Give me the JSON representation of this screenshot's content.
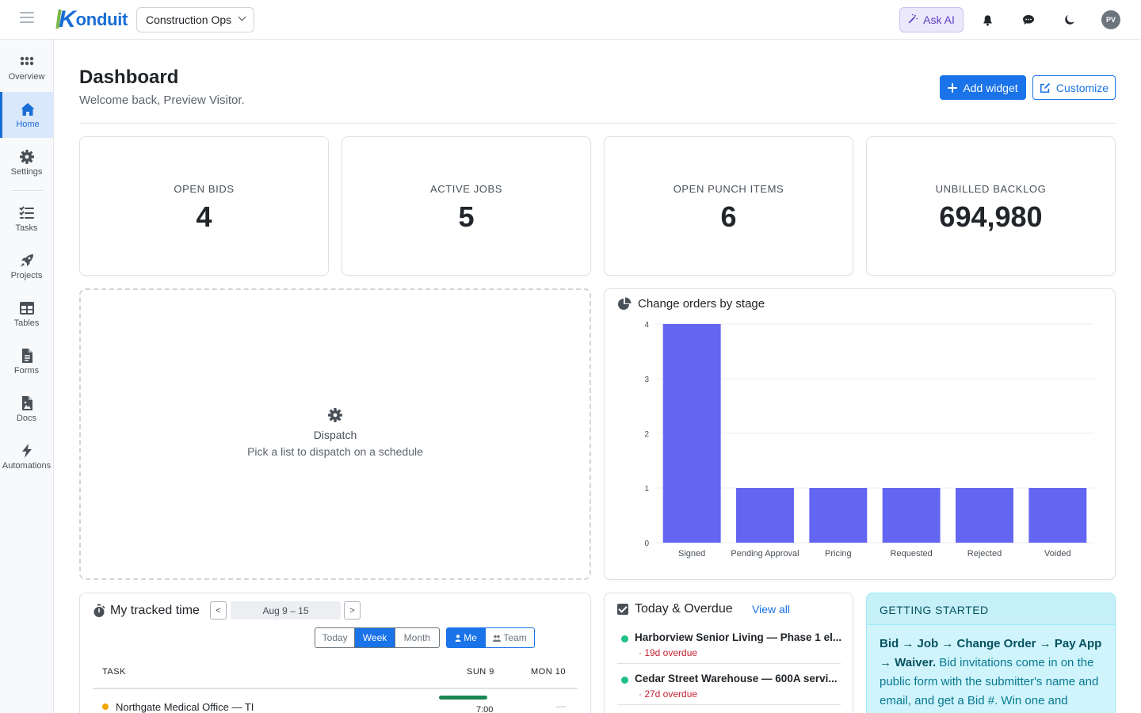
{
  "topbar": {
    "brand": "onduit",
    "brand_initial": "K",
    "workspace": "Construction Ops",
    "ask_ai": "Ask AI",
    "avatar_initials": "PV",
    "icons": [
      "hamburger-icon",
      "bell-icon",
      "chat-icon",
      "moon-icon"
    ]
  },
  "sidebar": {
    "items": [
      {
        "label": "Overview",
        "icon": "grid-icon"
      },
      {
        "label": "Home",
        "icon": "home-icon",
        "active": true
      },
      {
        "label": "Settings",
        "icon": "gear-icon"
      },
      {
        "label": "Tasks",
        "icon": "checklist-icon"
      },
      {
        "label": "Projects",
        "icon": "rocket-icon"
      },
      {
        "label": "Tables",
        "icon": "table-icon"
      },
      {
        "label": "Forms",
        "icon": "form-icon"
      },
      {
        "label": "Docs",
        "icon": "doc-icon"
      },
      {
        "label": "Automations",
        "icon": "bolt-icon"
      }
    ]
  },
  "header": {
    "title": "Dashboard",
    "subtitle": "Welcome back, Preview Visitor.",
    "add_widget": "Add widget",
    "customize": "Customize"
  },
  "kpis": [
    {
      "label": "OPEN BIDS",
      "value": "4"
    },
    {
      "label": "ACTIVE JOBS",
      "value": "5"
    },
    {
      "label": "OPEN PUNCH ITEMS",
      "value": "6"
    },
    {
      "label": "UNBILLED BACKLOG",
      "value": "694,980"
    }
  ],
  "dispatch": {
    "title": "Dispatch",
    "subtitle": "Pick a list to dispatch on a schedule"
  },
  "chart_data": {
    "type": "bar",
    "title": "Change orders by stage",
    "categories": [
      "Signed",
      "Pending Approval",
      "Pricing",
      "Requested",
      "Rejected",
      "Voided"
    ],
    "values": [
      4,
      1,
      1,
      1,
      1,
      1
    ],
    "ylim": [
      0,
      4
    ],
    "yticks": [
      "0",
      "1",
      "2",
      "3",
      "4"
    ],
    "color": "#6366f1",
    "grid": true,
    "xlabel": "",
    "ylabel": ""
  },
  "tracked_time": {
    "title": "My tracked time",
    "prev": "<",
    "next": ">",
    "range": "Aug 9 – 15",
    "periods": [
      "Today",
      "Week",
      "Month"
    ],
    "active_period": "Week",
    "scope": [
      "Me",
      "Team"
    ],
    "active_scope": "Me",
    "columns": [
      "TASK",
      "SUN 9",
      "MON 10"
    ],
    "rows": [
      {
        "task": "Northgate Medical Office — TI",
        "sun": "7:00",
        "mon": "—"
      }
    ]
  },
  "today_overdue": {
    "title": "Today & Overdue",
    "view_all": "View all",
    "items": [
      {
        "name": "Harborview Senior Living — Phase 1 el...",
        "due": "· 19d overdue"
      },
      {
        "name": "Cedar Street Warehouse — 600A servi...",
        "due": "· 27d overdue"
      }
    ]
  },
  "getting_started": {
    "title": "GETTING STARTED",
    "flow": "Bid → Job → Change Order → Pay App → Waiver.",
    "body": " Bid invitations come in on the public form with the submitter's name and email, and get a Bid #. Win one and"
  }
}
